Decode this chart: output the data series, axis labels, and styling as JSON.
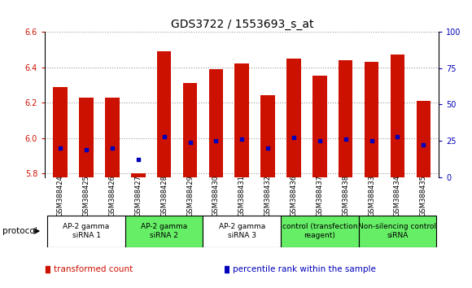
{
  "title": "GDS3722 / 1553693_s_at",
  "samples": [
    "GSM388424",
    "GSM388425",
    "GSM388426",
    "GSM388427",
    "GSM388428",
    "GSM388429",
    "GSM388430",
    "GSM388431",
    "GSM388432",
    "GSM388436",
    "GSM388437",
    "GSM388438",
    "GSM388433",
    "GSM388434",
    "GSM388435"
  ],
  "transformed_count": [
    6.29,
    6.23,
    6.23,
    5.8,
    6.49,
    6.31,
    6.39,
    6.42,
    6.24,
    6.45,
    6.35,
    6.44,
    6.43,
    6.47,
    6.21
  ],
  "percentile_rank": [
    20,
    19,
    20,
    12,
    28,
    24,
    25,
    26,
    20,
    27,
    25,
    26,
    25,
    28,
    22
  ],
  "ylim_left": [
    5.78,
    6.6
  ],
  "ylim_right": [
    0,
    100
  ],
  "yticks_left": [
    5.8,
    6.0,
    6.2,
    6.4,
    6.6
  ],
  "yticks_right": [
    0,
    25,
    50,
    75,
    100
  ],
  "bar_color": "#cc1100",
  "dot_color": "#0000bb",
  "groups": [
    {
      "label": "AP-2 gamma\nsiRNA 1",
      "indices": [
        0,
        1,
        2
      ],
      "color": "#ffffff"
    },
    {
      "label": "AP-2 gamma\nsiRNA 2",
      "indices": [
        3,
        4,
        5
      ],
      "color": "#66ee66"
    },
    {
      "label": "AP-2 gamma\nsiRNA 3",
      "indices": [
        6,
        7,
        8
      ],
      "color": "#ffffff"
    },
    {
      "label": "control (transfection\nreagent)",
      "indices": [
        9,
        10,
        11
      ],
      "color": "#66ee66"
    },
    {
      "label": "Non-silencing control\nsiRNA",
      "indices": [
        12,
        13,
        14
      ],
      "color": "#66ee66"
    }
  ],
  "protocol_label": "protocol",
  "legend_items": [
    {
      "label": "transformed count",
      "color": "#cc1100"
    },
    {
      "label": "percentile rank within the sample",
      "color": "#0000bb"
    }
  ],
  "background_color": "#ffffff",
  "plot_bg_color": "#ffffff",
  "grid_color": "#999999",
  "title_fontsize": 10,
  "tick_fontsize": 7,
  "bar_width": 0.55,
  "sample_bg_color": "#cccccc"
}
